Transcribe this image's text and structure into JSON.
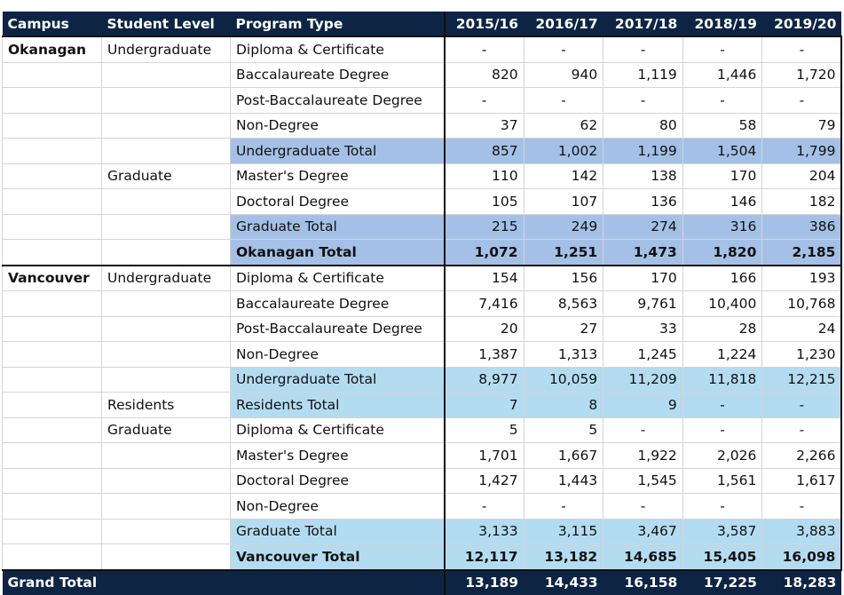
{
  "table": {
    "headers": [
      "Campus",
      "Student Level",
      "Program Type",
      "2015/16",
      "2016/17",
      "2017/18",
      "2018/19",
      "2019/20"
    ],
    "rows": [
      {
        "campus": "Okanagan",
        "level": "Undergraduate",
        "program": "Diploma & Certificate",
        "values": [
          "-",
          "-",
          "-",
          "-",
          "-"
        ],
        "kind": "data"
      },
      {
        "campus": "",
        "level": "",
        "program": "Baccalaureate Degree",
        "values": [
          "820",
          "940",
          "1,119",
          "1,446",
          "1,720"
        ],
        "kind": "data"
      },
      {
        "campus": "",
        "level": "",
        "program": "Post-Baccalaureate Degree",
        "values": [
          "-",
          "-",
          "-",
          "-",
          "-"
        ],
        "kind": "data"
      },
      {
        "campus": "",
        "level": "",
        "program": "Non-Degree",
        "values": [
          "37",
          "62",
          "80",
          "58",
          "79"
        ],
        "kind": "data"
      },
      {
        "campus": "",
        "level": "",
        "program": "Undergraduate Total",
        "values": [
          "857",
          "1,002",
          "1,199",
          "1,504",
          "1,799"
        ],
        "kind": "okn-sub"
      },
      {
        "campus": "",
        "level": "Graduate",
        "program": "Master's Degree",
        "values": [
          "110",
          "142",
          "138",
          "170",
          "204"
        ],
        "kind": "data"
      },
      {
        "campus": "",
        "level": "",
        "program": "Doctoral Degree",
        "values": [
          "105",
          "107",
          "136",
          "146",
          "182"
        ],
        "kind": "data"
      },
      {
        "campus": "",
        "level": "",
        "program": "Graduate Total",
        "values": [
          "215",
          "249",
          "274",
          "316",
          "386"
        ],
        "kind": "okn-sub"
      },
      {
        "campus": "",
        "level": "",
        "program": "Okanagan Total",
        "values": [
          "1,072",
          "1,251",
          "1,473",
          "1,820",
          "2,185"
        ],
        "kind": "okn-total"
      },
      {
        "campus": "Vancouver",
        "level": "Undergraduate",
        "program": "Diploma & Certificate",
        "values": [
          "154",
          "156",
          "170",
          "166",
          "193"
        ],
        "kind": "data"
      },
      {
        "campus": "",
        "level": "",
        "program": "Baccalaureate Degree",
        "values": [
          "7,416",
          "8,563",
          "9,761",
          "10,400",
          "10,768"
        ],
        "kind": "data"
      },
      {
        "campus": "",
        "level": "",
        "program": "Post-Baccalaureate Degree",
        "values": [
          "20",
          "27",
          "33",
          "28",
          "24"
        ],
        "kind": "data"
      },
      {
        "campus": "",
        "level": "",
        "program": "Non-Degree",
        "values": [
          "1,387",
          "1,313",
          "1,245",
          "1,224",
          "1,230"
        ],
        "kind": "data"
      },
      {
        "campus": "",
        "level": "",
        "program": "Undergraduate Total",
        "values": [
          "8,977",
          "10,059",
          "11,209",
          "11,818",
          "12,215"
        ],
        "kind": "van-sub"
      },
      {
        "campus": "",
        "level": "Residents",
        "program": "Residents Total",
        "values": [
          "7",
          "8",
          "9",
          "-",
          "-"
        ],
        "kind": "van-sub"
      },
      {
        "campus": "",
        "level": "Graduate",
        "program": "Diploma & Certificate",
        "values": [
          "5",
          "5",
          "-",
          "-",
          "-"
        ],
        "kind": "data"
      },
      {
        "campus": "",
        "level": "",
        "program": "Master's Degree",
        "values": [
          "1,701",
          "1,667",
          "1,922",
          "2,026",
          "2,266"
        ],
        "kind": "data"
      },
      {
        "campus": "",
        "level": "",
        "program": "Doctoral Degree",
        "values": [
          "1,427",
          "1,443",
          "1,545",
          "1,561",
          "1,617"
        ],
        "kind": "data"
      },
      {
        "campus": "",
        "level": "",
        "program": "Non-Degree",
        "values": [
          "-",
          "-",
          "-",
          "-",
          "-"
        ],
        "kind": "data"
      },
      {
        "campus": "",
        "level": "",
        "program": "Graduate Total",
        "values": [
          "3,133",
          "3,115",
          "3,467",
          "3,587",
          "3,883"
        ],
        "kind": "van-sub"
      },
      {
        "campus": "",
        "level": "",
        "program": "Vancouver Total",
        "values": [
          "12,117",
          "13,182",
          "14,685",
          "15,405",
          "16,098"
        ],
        "kind": "van-total"
      }
    ],
    "grand_total": {
      "label": "Grand Total",
      "values": [
        "13,189",
        "14,433",
        "16,158",
        "17,225",
        "18,283"
      ]
    }
  },
  "colors": {
    "header_bg": "#0d2444",
    "okanagan_highlight": "#a4c0e6",
    "vancouver_highlight": "#b4dcf1"
  }
}
